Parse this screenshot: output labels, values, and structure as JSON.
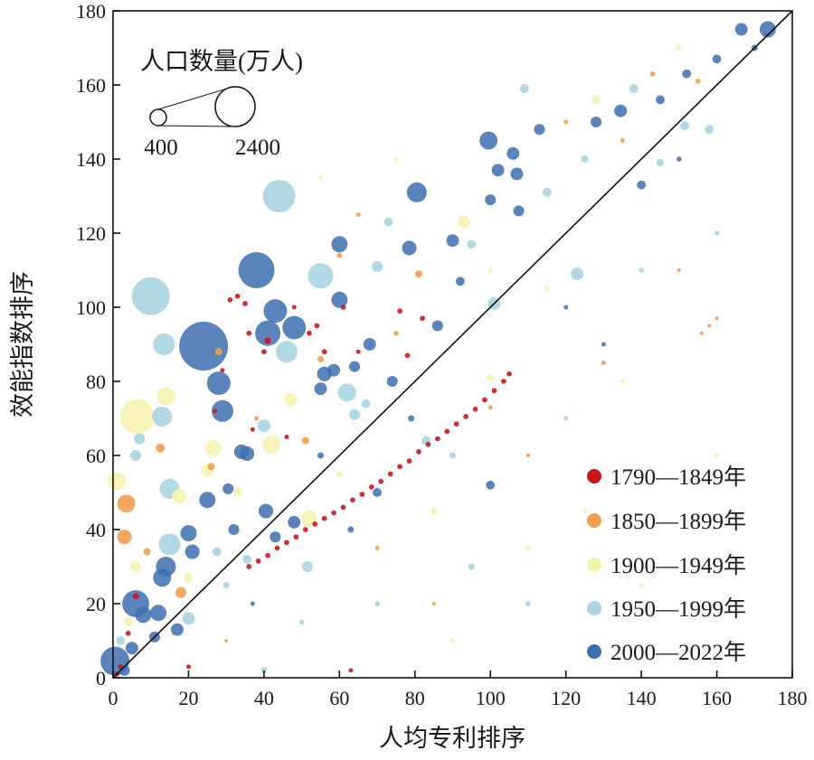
{
  "chart_data": {
    "type": "scatter",
    "subtype": "bubble",
    "xlabel": "人均专利排序",
    "ylabel": "效能指数排序",
    "xlim": [
      0,
      180
    ],
    "ylim": [
      0,
      180
    ],
    "xticks": [
      "0",
      "20",
      "40",
      "60",
      "80",
      "100",
      "120",
      "140",
      "160",
      "180"
    ],
    "yticks": [
      "0",
      "20",
      "40",
      "60",
      "80",
      "100",
      "120",
      "140",
      "160",
      "180"
    ],
    "grid": false,
    "reference_line": "y = x",
    "size_legend": {
      "title": "人口数量(万人)",
      "values": [
        400,
        2400
      ],
      "labels": [
        "400",
        "2400"
      ],
      "placement": "top-left"
    },
    "legend_placement": "bottom-right",
    "point_format": [
      "x",
      "y",
      "population_10k"
    ],
    "series": [
      {
        "name": "1790—1849年",
        "color": "#c8161d",
        "points": [
          [
            36,
            30,
            40
          ],
          [
            38.5,
            31.5,
            40
          ],
          [
            41,
            33,
            40
          ],
          [
            43.5,
            35,
            40
          ],
          [
            46,
            36.5,
            40
          ],
          [
            48.5,
            38,
            40
          ],
          [
            51,
            40,
            40
          ],
          [
            53.5,
            41.5,
            40
          ],
          [
            56,
            43,
            40
          ],
          [
            58.5,
            44.5,
            40
          ],
          [
            61,
            46,
            40
          ],
          [
            63.5,
            48,
            40
          ],
          [
            66,
            49.5,
            40
          ],
          [
            68.5,
            51.5,
            40
          ],
          [
            71,
            53,
            40
          ],
          [
            73.5,
            55,
            40
          ],
          [
            76,
            57,
            40
          ],
          [
            78.5,
            58.5,
            40
          ],
          [
            81,
            61,
            40
          ],
          [
            83.5,
            63,
            40
          ],
          [
            86,
            64.5,
            40
          ],
          [
            88.5,
            66.5,
            40
          ],
          [
            91,
            68.5,
            40
          ],
          [
            93.5,
            70.5,
            40
          ],
          [
            96,
            72.5,
            40
          ],
          [
            98.5,
            75,
            40
          ],
          [
            101,
            77.5,
            40
          ],
          [
            103.5,
            80,
            40
          ],
          [
            105,
            82,
            40
          ],
          [
            6,
            22,
            60
          ],
          [
            4,
            12,
            40
          ],
          [
            2,
            3,
            40
          ],
          [
            20,
            3,
            30
          ],
          [
            33,
            103,
            40
          ],
          [
            35,
            101,
            40
          ],
          [
            31,
            102,
            40
          ],
          [
            36,
            93,
            40
          ],
          [
            40,
            88,
            40
          ],
          [
            41,
            91,
            60
          ],
          [
            52,
            93,
            40
          ],
          [
            56,
            88,
            40
          ],
          [
            76,
            99,
            40
          ],
          [
            82,
            97,
            40
          ],
          [
            78,
            87,
            40
          ],
          [
            37,
            67,
            30
          ],
          [
            46,
            65,
            30
          ],
          [
            27,
            72,
            30
          ],
          [
            29,
            83,
            30
          ],
          [
            61,
            100,
            40
          ],
          [
            54,
            95,
            40
          ],
          [
            65,
            88,
            30
          ],
          [
            48,
            100,
            30
          ],
          [
            63,
            2,
            30
          ],
          [
            1,
            1,
            40
          ]
        ]
      },
      {
        "name": "1850—1899年",
        "color": "#f0a050",
        "points": [
          [
            3.5,
            47,
            490
          ],
          [
            3,
            38,
            320
          ],
          [
            12.5,
            62,
            120
          ],
          [
            18,
            23,
            180
          ],
          [
            9,
            34,
            80
          ],
          [
            26,
            57,
            80
          ],
          [
            81,
            109,
            80
          ],
          [
            28,
            88,
            80
          ],
          [
            55,
            86,
            60
          ],
          [
            51,
            64,
            80
          ],
          [
            60,
            114,
            40
          ],
          [
            143,
            163,
            40
          ],
          [
            155,
            161,
            40
          ],
          [
            160,
            97,
            20
          ],
          [
            158,
            95,
            20
          ],
          [
            156,
            93,
            20
          ],
          [
            130,
            85,
            30
          ],
          [
            100,
            73,
            30
          ],
          [
            75,
            93,
            40
          ],
          [
            38,
            70,
            30
          ],
          [
            120,
            150,
            30
          ],
          [
            135,
            145,
            30
          ],
          [
            65,
            125,
            30
          ],
          [
            70,
            35,
            30
          ],
          [
            85,
            20,
            20
          ],
          [
            110,
            60,
            20
          ],
          [
            150,
            110,
            20
          ],
          [
            30,
            10,
            20
          ]
        ]
      },
      {
        "name": "1900—1949年",
        "color": "#f5f3b0",
        "points": [
          [
            6.5,
            70.5,
            1800
          ],
          [
            1,
            53,
            490
          ],
          [
            14,
            76,
            490
          ],
          [
            26.5,
            62,
            400
          ],
          [
            17.5,
            49,
            320
          ],
          [
            42,
            63,
            490
          ],
          [
            52,
            43,
            400
          ],
          [
            47,
            75,
            240
          ],
          [
            93,
            123,
            240
          ],
          [
            128,
            156,
            120
          ],
          [
            100,
            81,
            80
          ],
          [
            25,
            56,
            240
          ],
          [
            6,
            30,
            180
          ],
          [
            20,
            27,
            120
          ],
          [
            4,
            15,
            120
          ],
          [
            33,
            50,
            120
          ],
          [
            60,
            55,
            60
          ],
          [
            85,
            45,
            60
          ],
          [
            110,
            35,
            40
          ],
          [
            135,
            80,
            40
          ],
          [
            150,
            170,
            40
          ],
          [
            75,
            140,
            40
          ],
          [
            100,
            110,
            40
          ],
          [
            160,
            60,
            30
          ],
          [
            140,
            25,
            30
          ],
          [
            125,
            45,
            30
          ],
          [
            90,
            10,
            30
          ],
          [
            55,
            135,
            30
          ],
          [
            115,
            105,
            30
          ]
        ]
      },
      {
        "name": "1950—1999年",
        "color": "#a9d4e0",
        "points": [
          [
            44,
            130,
            1600
          ],
          [
            10,
            103,
            2180
          ],
          [
            55,
            108.5,
            970
          ],
          [
            13.5,
            90,
            710
          ],
          [
            46,
            88,
            710
          ],
          [
            13,
            70.5,
            600
          ],
          [
            15,
            51,
            600
          ],
          [
            15,
            36,
            710
          ],
          [
            62,
            77,
            490
          ],
          [
            7,
            64.5,
            180
          ],
          [
            6,
            60,
            180
          ],
          [
            40,
            68,
            240
          ],
          [
            109,
            159,
            120
          ],
          [
            101,
            101,
            240
          ],
          [
            70,
            111,
            180
          ],
          [
            73,
            123,
            120
          ],
          [
            123,
            109,
            240
          ],
          [
            20,
            16,
            240
          ],
          [
            51.5,
            30,
            180
          ],
          [
            27.5,
            34,
            120
          ],
          [
            35.5,
            32,
            120
          ],
          [
            138,
            159,
            120
          ],
          [
            151.5,
            149,
            120
          ],
          [
            158,
            148,
            120
          ],
          [
            95,
            117,
            120
          ],
          [
            64,
            71,
            180
          ],
          [
            67,
            74,
            120
          ],
          [
            83,
            64,
            120
          ],
          [
            115,
            131,
            120
          ],
          [
            125,
            140,
            80
          ],
          [
            145,
            139,
            80
          ],
          [
            95,
            30,
            60
          ],
          [
            110,
            20,
            40
          ],
          [
            70,
            20,
            40
          ],
          [
            2,
            10,
            120
          ],
          [
            40,
            2,
            60
          ],
          [
            30,
            25,
            60
          ],
          [
            140,
            110,
            40
          ],
          [
            160,
            120,
            40
          ],
          [
            90,
            60,
            60
          ],
          [
            120,
            70,
            30
          ],
          [
            50,
            15,
            40
          ]
        ]
      },
      {
        "name": "2000—2022年",
        "color": "#3d6fae",
        "points": [
          [
            24,
            89.5,
            3600
          ],
          [
            38,
            110,
            1975
          ],
          [
            80.5,
            131,
            600
          ],
          [
            99.5,
            145,
            490
          ],
          [
            43,
            99,
            830
          ],
          [
            41,
            93,
            970
          ],
          [
            48,
            94.5,
            830
          ],
          [
            28,
            79.5,
            830
          ],
          [
            29,
            72,
            710
          ],
          [
            6,
            20,
            1100
          ],
          [
            0.5,
            4.5,
            1260
          ],
          [
            14,
            30,
            600
          ],
          [
            13,
            27,
            490
          ],
          [
            12,
            17.5,
            400
          ],
          [
            8,
            17,
            400
          ],
          [
            20,
            39,
            400
          ],
          [
            25,
            48,
            400
          ],
          [
            21,
            34,
            320
          ],
          [
            60,
            117,
            400
          ],
          [
            60,
            102,
            400
          ],
          [
            56,
            82,
            320
          ],
          [
            58.5,
            83,
            240
          ],
          [
            78.5,
            116,
            320
          ],
          [
            90,
            118,
            240
          ],
          [
            106,
            141.5,
            240
          ],
          [
            102,
            137,
            240
          ],
          [
            107,
            136,
            240
          ],
          [
            100,
            129,
            180
          ],
          [
            107.5,
            126,
            180
          ],
          [
            134.5,
            153,
            240
          ],
          [
            166.5,
            175,
            240
          ],
          [
            173.5,
            175,
            400
          ],
          [
            68,
            90,
            240
          ],
          [
            34,
            61,
            320
          ],
          [
            35.5,
            60.5,
            320
          ],
          [
            40.5,
            45,
            320
          ],
          [
            48,
            42,
            240
          ],
          [
            43,
            38,
            180
          ],
          [
            30.5,
            51,
            180
          ],
          [
            32,
            40,
            180
          ],
          [
            55,
            78,
            240
          ],
          [
            64,
            84,
            180
          ],
          [
            74,
            80,
            180
          ],
          [
            86,
            95,
            180
          ],
          [
            92,
            107,
            120
          ],
          [
            113,
            148,
            180
          ],
          [
            128,
            150,
            180
          ],
          [
            152,
            163,
            120
          ],
          [
            160,
            167,
            120
          ],
          [
            145,
            156,
            120
          ],
          [
            140,
            133,
            120
          ],
          [
            100,
            52,
            120
          ],
          [
            70,
            50,
            120
          ],
          [
            5,
            8,
            240
          ],
          [
            3,
            2,
            180
          ],
          [
            17,
            13,
            240
          ],
          [
            11,
            11,
            180
          ],
          [
            37,
            20,
            30
          ],
          [
            63,
            40,
            60
          ],
          [
            55,
            60,
            60
          ],
          [
            79,
            70,
            60
          ],
          [
            120,
            100,
            30
          ],
          [
            150,
            140,
            40
          ],
          [
            130,
            90,
            30
          ],
          [
            170,
            170,
            60
          ]
        ]
      }
    ]
  }
}
